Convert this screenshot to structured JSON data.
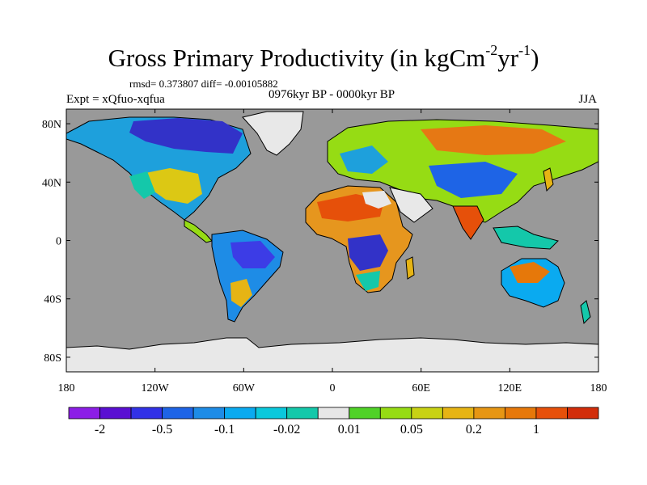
{
  "title": {
    "main": "Gross Primary Productivity (in kgCm",
    "exp1": "-2",
    "mid": "yr",
    "exp2": "-1",
    "end": ")"
  },
  "stats": "rmsd= 0.373807 diff= -0.00105882",
  "experiment": "Expt = xQfuo-xqfua",
  "period": "0976kyr BP - 0000kyr BP",
  "season": "JJA",
  "axes": {
    "xticks": [
      {
        "value": -180,
        "label": "180"
      },
      {
        "value": -120,
        "label": "120W"
      },
      {
        "value": -60,
        "label": "60W"
      },
      {
        "value": 0,
        "label": "0"
      },
      {
        "value": 60,
        "label": "60E"
      },
      {
        "value": 120,
        "label": "120E"
      },
      {
        "value": 180,
        "label": "180"
      }
    ],
    "yticks": [
      {
        "value": 80,
        "label": "80N"
      },
      {
        "value": 40,
        "label": "40N"
      },
      {
        "value": 0,
        "label": "0"
      },
      {
        "value": -40,
        "label": "40S"
      },
      {
        "value": -80,
        "label": "80S"
      }
    ],
    "xlim": [
      -180,
      180
    ],
    "ylim": [
      -90,
      90
    ]
  },
  "colors": {
    "ocean": "#999999",
    "ice": "#e8e8e8"
  },
  "colorbar": {
    "colors": [
      "#8c1ee6",
      "#5a0fd2",
      "#3232e6",
      "#1e64e6",
      "#1e8ce6",
      "#0aaaf0",
      "#0ac8dc",
      "#14c8aa",
      "#e6e6e6",
      "#50d228",
      "#96dc14",
      "#c8d214",
      "#e6b414",
      "#e69614",
      "#e6780a",
      "#e6500a",
      "#d22d0a"
    ],
    "labels": [
      {
        "after_index": 0,
        "text": "-2"
      },
      {
        "after_index": 2,
        "text": "-0.5"
      },
      {
        "after_index": 4,
        "text": "-0.1"
      },
      {
        "after_index": 6,
        "text": "-0.02"
      },
      {
        "after_index": 8,
        "text": "0.01"
      },
      {
        "after_index": 10,
        "text": "0.05"
      },
      {
        "after_index": 12,
        "text": "0.2"
      },
      {
        "after_index": 14,
        "text": "1"
      }
    ]
  }
}
